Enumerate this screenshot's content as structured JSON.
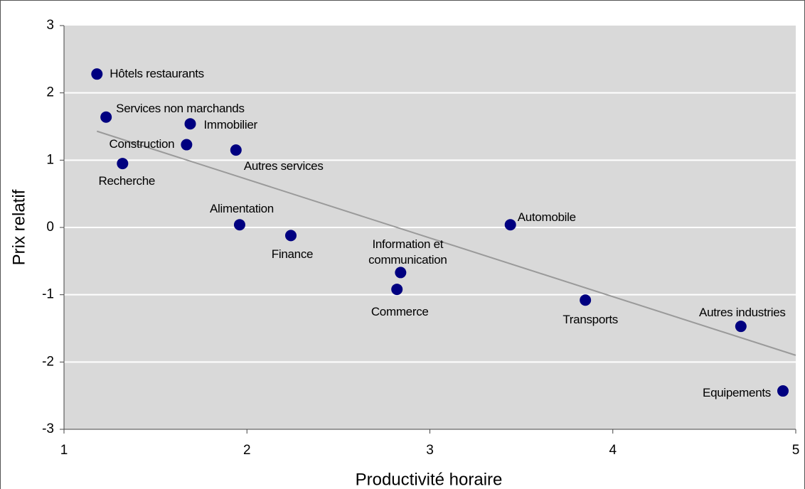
{
  "chart_data": {
    "type": "scatter",
    "x_label": "Productivité horaire",
    "y_label": "Prix relatif",
    "labels": [
      "Hôtels restaurants",
      "Services non marchands",
      "Immobilier",
      "Construction",
      "Autres services",
      "Recherche",
      "Alimentation",
      "Finance",
      "Automobile",
      "Information et communication",
      "Commerce",
      "Transports",
      "Autres industries",
      "Equipements"
    ],
    "x": [
      1.18,
      1.23,
      1.69,
      1.67,
      1.94,
      1.32,
      1.96,
      2.24,
      3.44,
      2.84,
      2.82,
      3.85,
      4.7,
      4.93
    ],
    "y": [
      2.28,
      1.64,
      1.54,
      1.23,
      1.15,
      0.95,
      0.04,
      -0.12,
      0.04,
      -0.67,
      -0.92,
      -1.08,
      -1.47,
      -2.43
    ],
    "color": "#000080",
    "trendline": {
      "x": [
        1.18,
        5
      ],
      "y": [
        1.43,
        -1.9
      ],
      "color": "#9a9a9a"
    },
    "xlim": [
      1,
      5
    ],
    "xticks": [
      1,
      2,
      3,
      4,
      5
    ],
    "ylim": [
      -3,
      3
    ],
    "yticks": [
      -3,
      -2,
      -1,
      0,
      1,
      2,
      3
    ],
    "grid": true
  }
}
